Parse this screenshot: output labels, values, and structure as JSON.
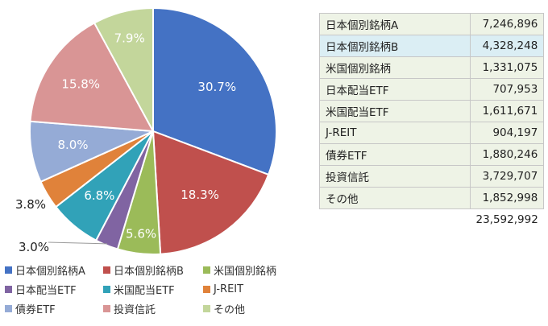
{
  "chart_data": {
    "type": "pie",
    "slices": [
      {
        "label": "日本個別銘柄A",
        "percent_label": "30.7%",
        "value": 30.7,
        "color": "#4472c4"
      },
      {
        "label": "日本個別銘柄B",
        "percent_label": "18.3%",
        "value": 18.3,
        "color": "#c0504d"
      },
      {
        "label": "米国個別銘柄",
        "percent_label": "5.6%",
        "value": 5.6,
        "color": "#9bbb59"
      },
      {
        "label": "日本配当ETF",
        "percent_label": "3.0%",
        "value": 3.0,
        "color": "#8064a2"
      },
      {
        "label": "米国配当ETF",
        "percent_label": "6.8%",
        "value": 6.8,
        "color": "#31a2b8"
      },
      {
        "label": "J-REIT",
        "percent_label": "3.8%",
        "value": 3.8,
        "color": "#e0823a"
      },
      {
        "label": "債券ETF",
        "percent_label": "8.0%",
        "value": 8.0,
        "color": "#95abd6"
      },
      {
        "label": "投資信託",
        "percent_label": "15.8%",
        "value": 15.8,
        "color": "#d99595"
      },
      {
        "label": "その他",
        "percent_label": "7.9%",
        "value": 7.9,
        "color": "#c3d69b"
      }
    ],
    "legend_placement": "bottom"
  },
  "table": {
    "rows": [
      {
        "name": "日本個別銘柄A",
        "value": "7,246,896"
      },
      {
        "name": "日本個別銘柄B",
        "value": "4,328,248",
        "highlight": true
      },
      {
        "name": "米国個別銘柄",
        "value": "1,331,075"
      },
      {
        "name": "日本配当ETF",
        "value": "707,953"
      },
      {
        "name": "米国配当ETF",
        "value": "1,611,671"
      },
      {
        "name": "J-REIT",
        "value": "904,197"
      },
      {
        "name": "債券ETF",
        "value": "1,880,246"
      },
      {
        "name": "投資信託",
        "value": "3,729,707"
      },
      {
        "name": "その他",
        "value": "1,852,998"
      }
    ],
    "total": "23,592,992"
  }
}
